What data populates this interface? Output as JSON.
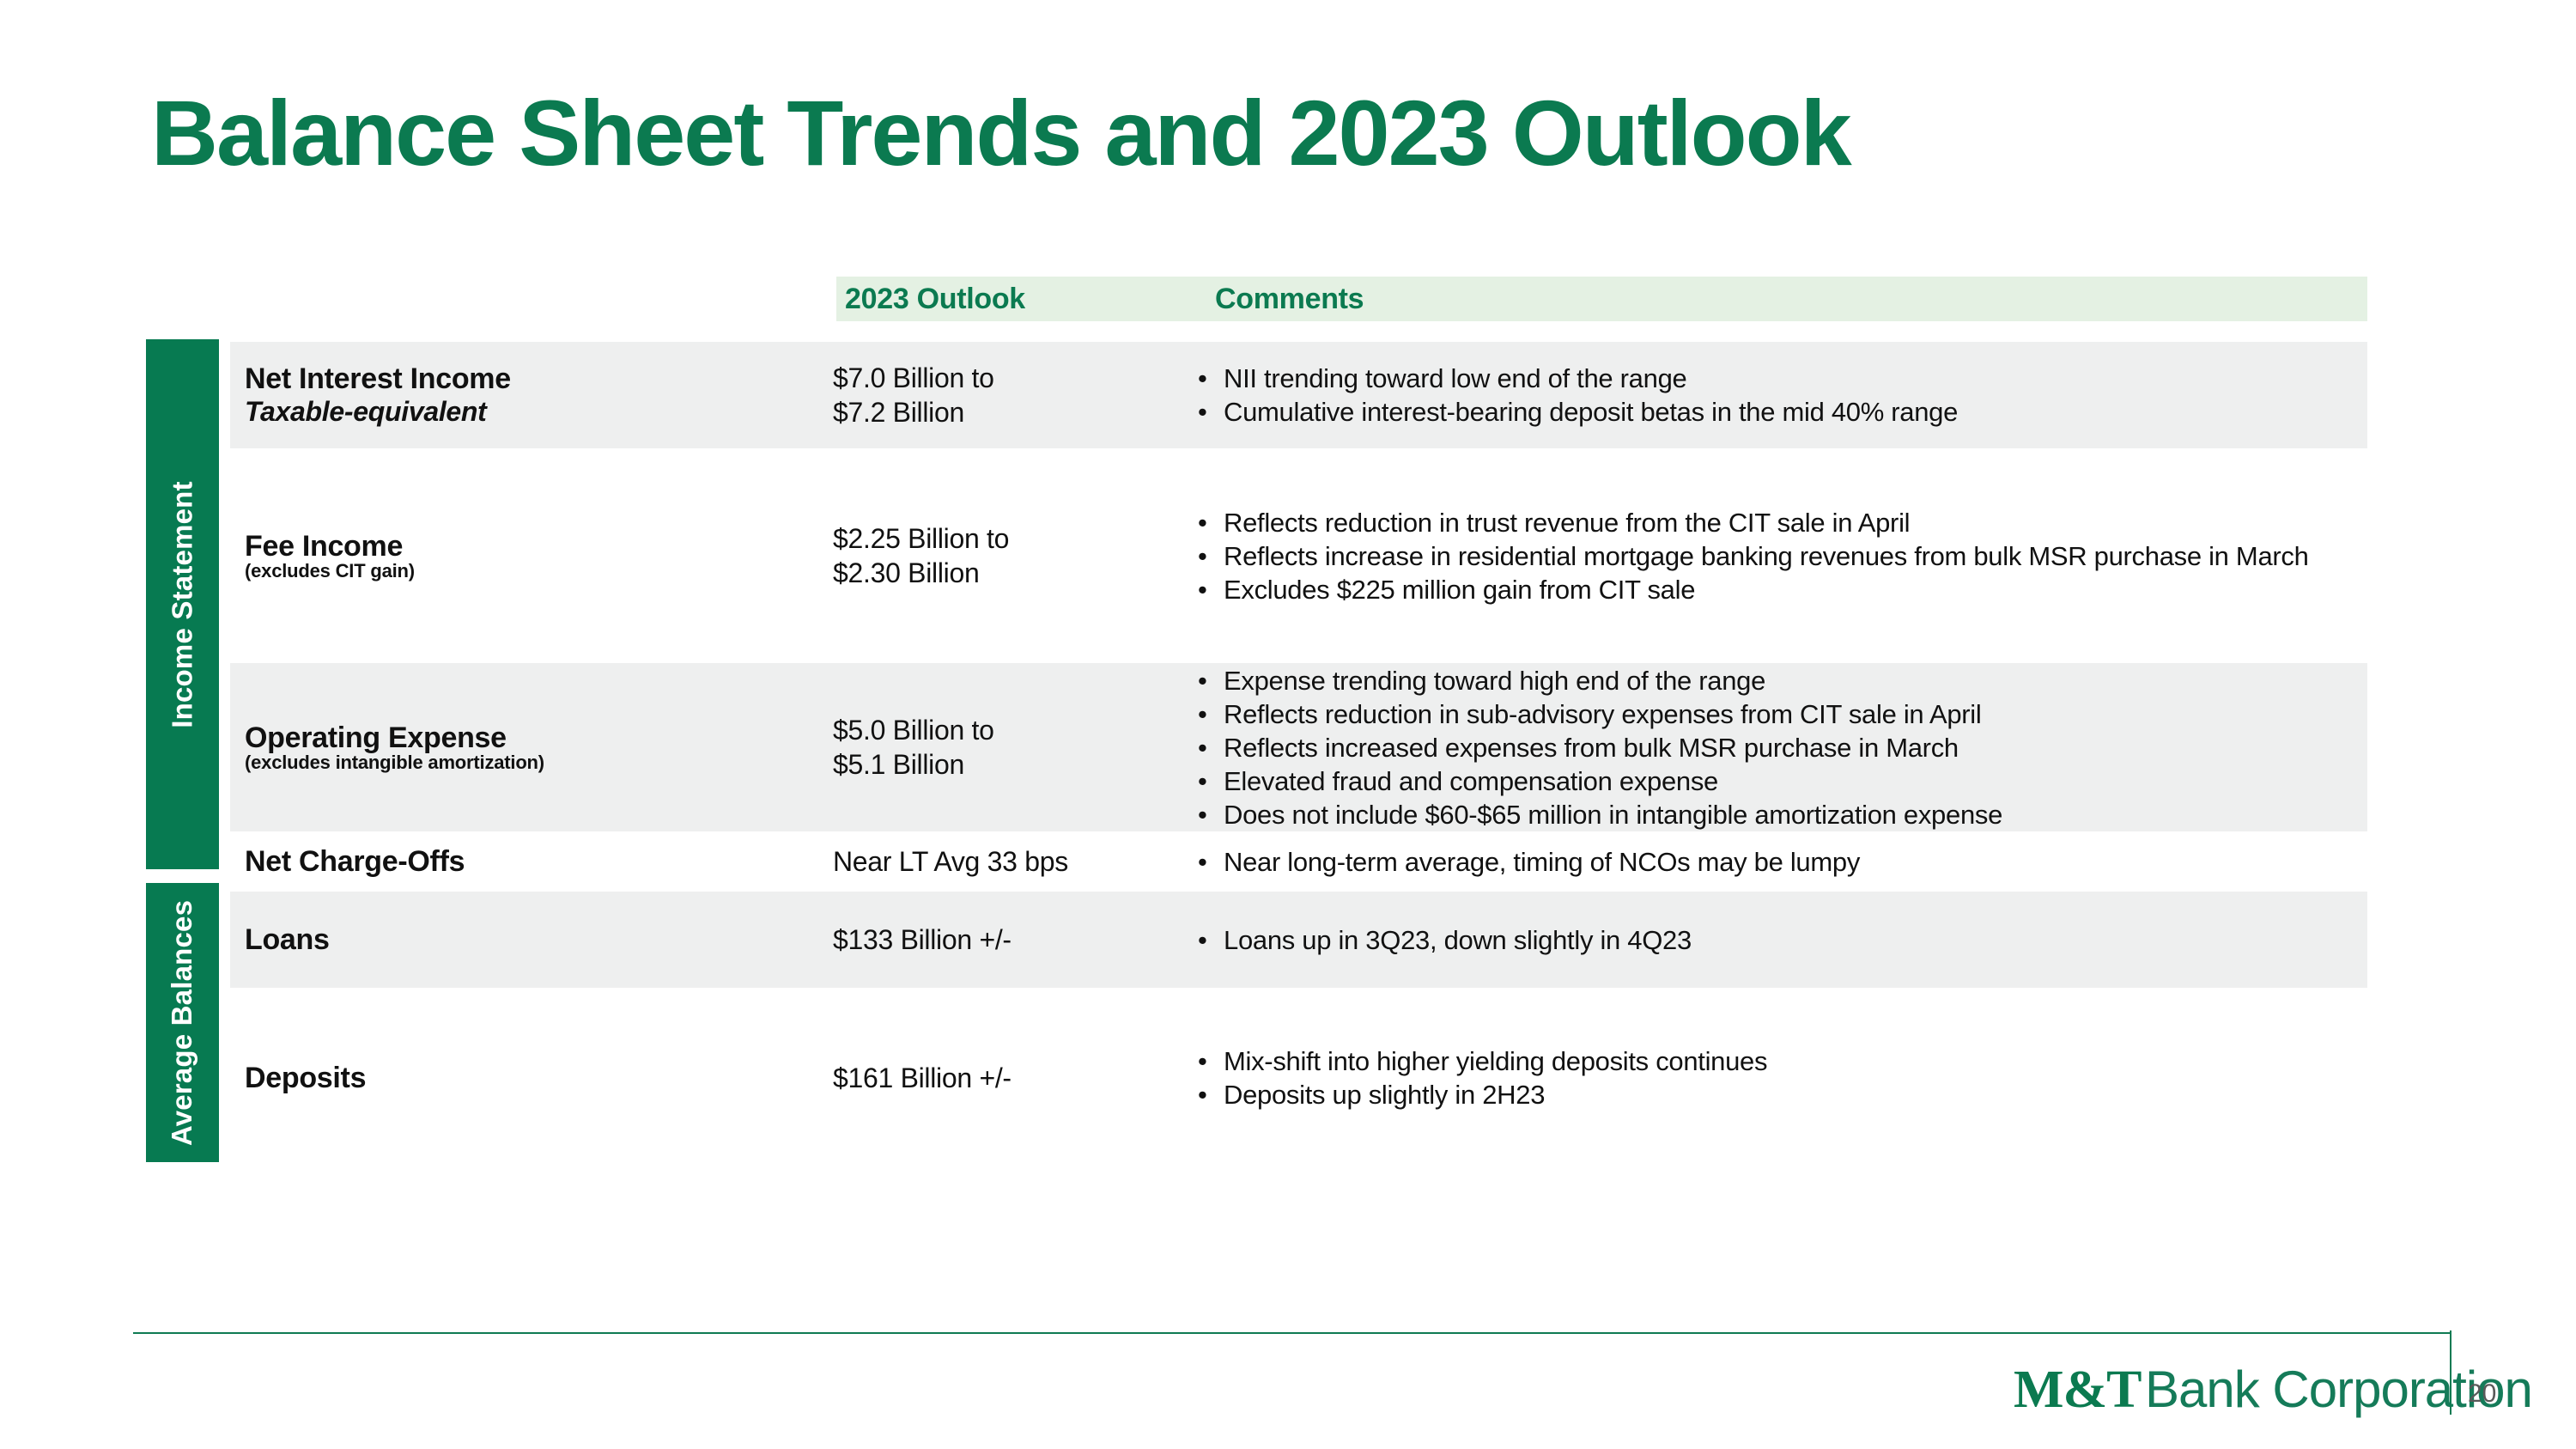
{
  "slide": {
    "title": "Balance Sheet Trends and 2023 Outlook",
    "footer": {
      "logo_mt": "M&T",
      "logo_text": "Bank Corporation",
      "page_number": "20"
    }
  },
  "table": {
    "header": {
      "outlook": "2023 Outlook",
      "comments": "Comments"
    },
    "side_groups": [
      {
        "label": "Income Statement"
      },
      {
        "label": "Average Balances"
      }
    ],
    "rows": [
      {
        "label": "Net Interest Income",
        "sublabel": "Taxable-equivalent",
        "outlook": [
          "$7.0 Billion to",
          "$7.2 Billion"
        ],
        "comments": [
          "NII trending toward low end of the range",
          "Cumulative interest-bearing deposit betas in the mid 40% range"
        ],
        "group": "Income Statement",
        "shaded": true
      },
      {
        "label": "Fee Income",
        "note": "(excludes CIT gain)",
        "outlook": [
          "$2.25 Billion to",
          "$2.30 Billion"
        ],
        "comments": [
          "Reflects reduction in trust revenue from the CIT sale in April",
          "Reflects increase in residential mortgage banking revenues from bulk MSR purchase in March",
          "Excludes $225 million gain from CIT sale"
        ],
        "group": "Income Statement",
        "shaded": false
      },
      {
        "label": "Operating Expense",
        "note": "(excludes intangible amortization)",
        "outlook": [
          "$5.0 Billion to",
          "$5.1 Billion"
        ],
        "comments": [
          "Expense trending toward high end of the range",
          "Reflects reduction in sub-advisory expenses from CIT sale in April",
          "Reflects increased expenses from bulk MSR purchase in March",
          "Elevated fraud and compensation expense",
          "Does not include $60-$65 million in intangible amortization expense"
        ],
        "group": "Income Statement",
        "shaded": true
      },
      {
        "label": "Net Charge-Offs",
        "outlook": [
          "Near LT Avg 33 bps"
        ],
        "comments": [
          "Near long-term average, timing of NCOs may be lumpy"
        ],
        "group": "Income Statement",
        "shaded": false
      },
      {
        "label": "Loans",
        "outlook": [
          "$133 Billion +/-"
        ],
        "comments": [
          "Loans up in 3Q23, down slightly in 4Q23"
        ],
        "group": "Average Balances",
        "shaded": true
      },
      {
        "label": "Deposits",
        "outlook": [
          "$161 Billion +/-"
        ],
        "comments": [
          "Mix-shift into higher yielding deposits continues",
          "Deposits up slightly in 2H23"
        ],
        "group": "Average Balances",
        "shaded": false
      }
    ]
  },
  "colors": {
    "brand_green": "#077A51",
    "title_green": "#0B7A50",
    "header_band_green": "#E4F1E3",
    "row_shade_gray": "#EEEFEF",
    "logo_green": "#0F7B53",
    "page_number_gray": "#595959"
  }
}
